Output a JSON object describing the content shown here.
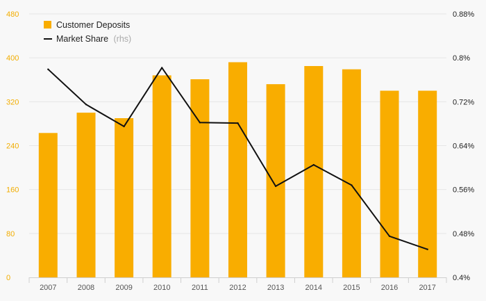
{
  "chart_data": {
    "type": "bar",
    "categories": [
      "2007",
      "2008",
      "2009",
      "2010",
      "2011",
      "2012",
      "2013",
      "2014",
      "2015",
      "2016",
      "2017"
    ],
    "series": [
      {
        "name": "Customer Deposits",
        "type": "bar",
        "axis": "left",
        "color": "#f9ad00",
        "values": [
          263,
          300,
          290,
          368,
          361,
          392,
          352,
          385,
          379,
          340,
          340
        ]
      },
      {
        "name": "Market Share",
        "name_note": "(rhs)",
        "type": "line",
        "axis": "right",
        "color": "#111111",
        "values": [
          0.779,
          0.715,
          0.675,
          0.782,
          0.682,
          0.681,
          0.566,
          0.605,
          0.568,
          0.475,
          0.451
        ]
      }
    ],
    "y_left": {
      "min": 0,
      "max": 480,
      "ticks": [
        "0",
        "80",
        "160",
        "240",
        "320",
        "400",
        "480"
      ],
      "color": "#f2ad00"
    },
    "y_right": {
      "min": 0.4,
      "max": 0.88,
      "ticks": [
        "0.4%",
        "0.48%",
        "0.56%",
        "0.64%",
        "0.72%",
        "0.8%",
        "0.88%"
      ]
    },
    "grid": true,
    "legend": "top-left"
  }
}
